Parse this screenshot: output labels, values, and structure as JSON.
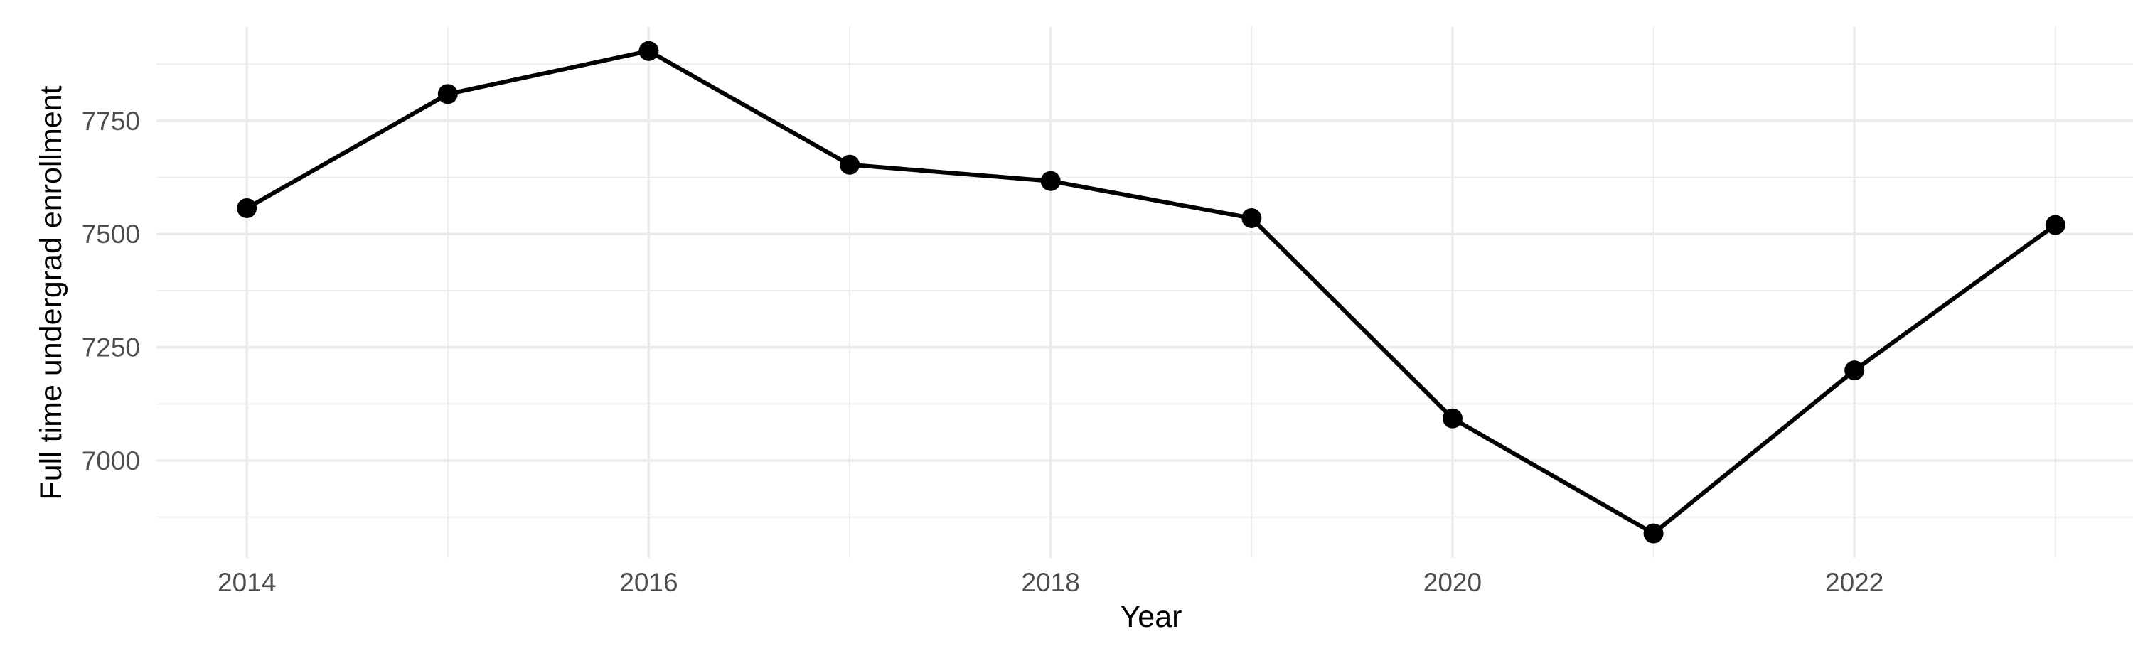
{
  "chart_data": {
    "type": "line",
    "title": "",
    "xlabel": "Year",
    "ylabel": "Full time undergrad enrollment",
    "x": [
      2014,
      2015,
      2016,
      2017,
      2018,
      2019,
      2020,
      2021,
      2022,
      2023
    ],
    "values": [
      7557,
      7809,
      7904,
      7653,
      7617,
      7535,
      7093,
      6839,
      7199,
      7520
    ],
    "series_name": "Full time undergrad enrollment",
    "x_tick_labels": [
      2014,
      2016,
      2018,
      2020,
      2022
    ],
    "x_minor_gridlines": [
      2015,
      2017,
      2019,
      2021,
      2023
    ],
    "y_tick_labels": [
      7000,
      7250,
      7500,
      7750
    ],
    "y_minor_gridlines": [
      6875,
      7125,
      7375,
      7625,
      7875
    ],
    "xlim": [
      2013.55,
      2023.45
    ],
    "ylim": [
      6785,
      7957
    ],
    "grid": true,
    "legend": "none",
    "marker": "point",
    "colors": {
      "line": "#000000",
      "point": "#000000",
      "grid": "#EBEBEB",
      "tick_label": "#4D4D4D",
      "axis_title": "#000000",
      "background": "#FFFFFF"
    }
  }
}
